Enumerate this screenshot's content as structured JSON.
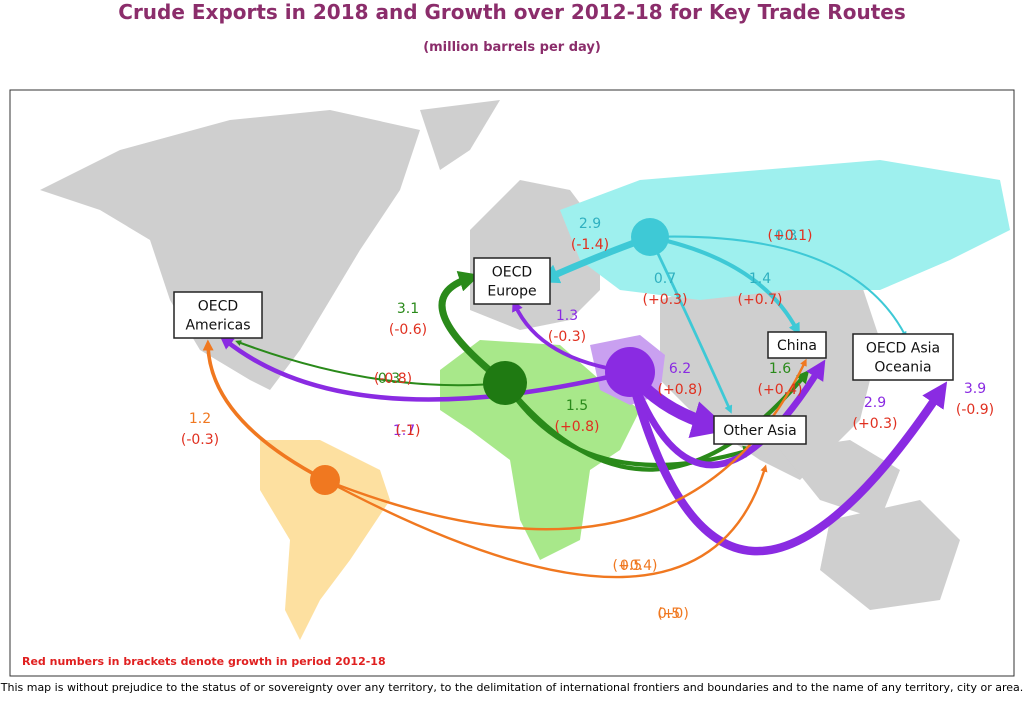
{
  "title": "Crude Exports in 2018 and Growth over 2012-18 for Key Trade Routes",
  "subtitle": "(million barrels per day)",
  "destinations": [
    [
      "OECD",
      "Europe"
    ],
    [
      "OECD",
      "Americas"
    ],
    [
      "China"
    ],
    [
      "OECD Asia",
      "Oceania"
    ],
    [
      "Other Asia"
    ]
  ],
  "flows": [
    {
      "value": 2.9,
      "growth": "(-1.4)"
    },
    {
      "value": 0.3,
      "growth": "(+0.1)"
    },
    {
      "value": 0.7,
      "growth": "(+0.3)"
    },
    {
      "value": 1.4,
      "growth": "(+0.7)"
    },
    {
      "value": 3.1,
      "growth": "(-0.6)"
    },
    {
      "value": 0.3,
      "growth": "(-0.8)"
    },
    {
      "value": 1.5,
      "growth": "(+0.8)"
    },
    {
      "value": 1.6,
      "growth": "(+0.4)"
    },
    {
      "value": 1.3,
      "growth": "(-0.3)"
    },
    {
      "value": 1.7,
      "growth": "(-1)"
    },
    {
      "value": 6.2,
      "growth": "(+0.8)"
    },
    {
      "value": 2.9,
      "growth": "(+0.3)"
    },
    {
      "value": 3.9,
      "growth": "(-0.9)"
    },
    {
      "value": 1.2,
      "growth": "(-0.3)"
    },
    {
      "value": 0.5,
      "growth": "(+0.4)"
    },
    {
      "value": 0.5,
      "growth": "(+0)"
    }
  ],
  "footnote": "Red numbers in brackets denote growth in period 2012-18",
  "disclaimer": "This map is without prejudice to the status of or sovereignty over any territory, to the delimitation of international frontiers and boundaries and to the name of any territory, city or area."
}
